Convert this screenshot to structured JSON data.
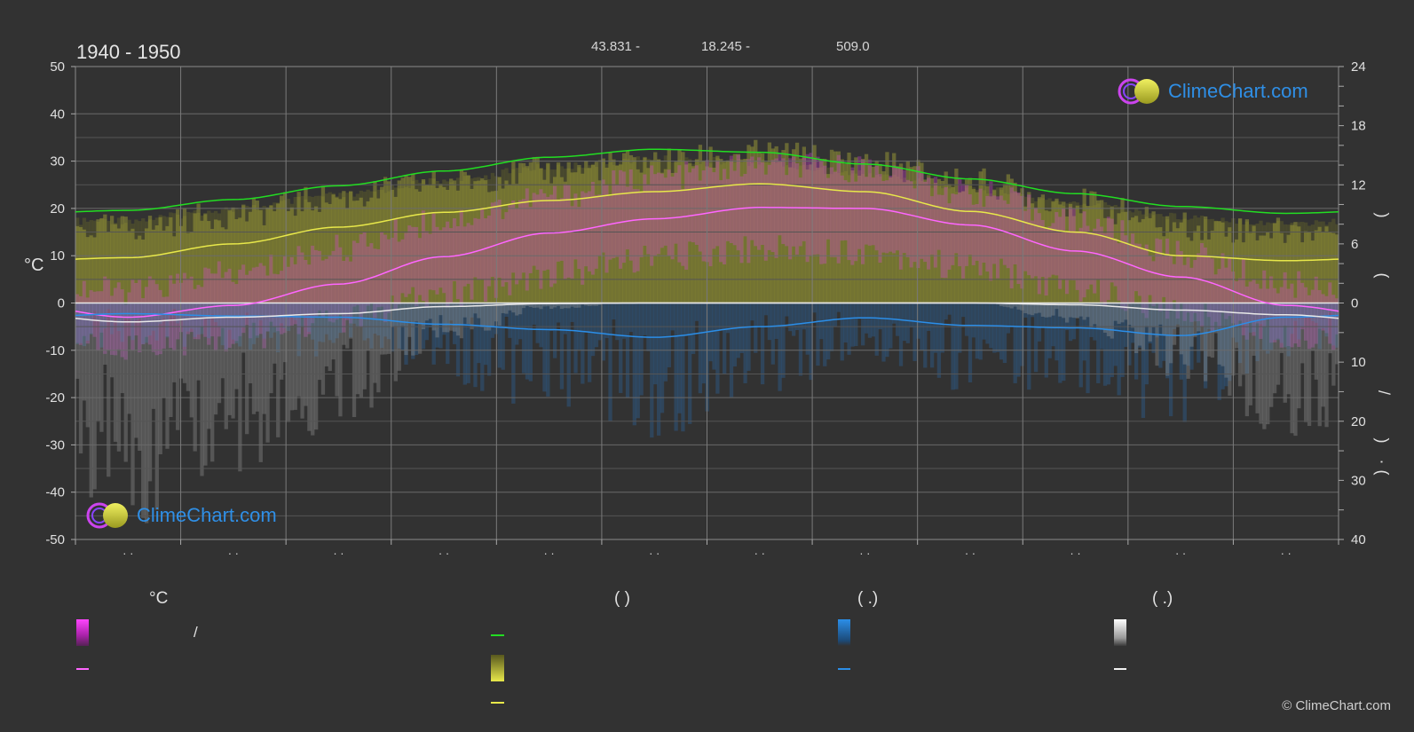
{
  "header": {
    "period": "1940 - 1950",
    "latitude": "43.831 -",
    "longitude": "18.245 -",
    "elevation": "509.0"
  },
  "logo_text": "ClimeChart.com",
  "copyright": "© ClimeChart.com",
  "left_axis_unit": "°C",
  "right_axis_marks": [
    "(",
    ")",
    "/",
    "(",
    "·",
    ")"
  ],
  "legend": {
    "temperature_head": "°C",
    "daylight_head": "(          )",
    "rain_head": "(    .)",
    "snow_head": "(    .)",
    "temp_range_sep": "/"
  },
  "colors": {
    "background": "#323232",
    "grid": "#6a6a6a",
    "daylight": "#22dd22",
    "sunshine": "#e8e84a",
    "temp_mean": "#ff66ff",
    "temp_fill": "#dd44dd",
    "rain": "#2b8ee8",
    "snow": "#e8e8e8"
  },
  "chart_data": {
    "type": "line",
    "x_ticks": [
      "· ·",
      "· ·",
      "· ·",
      "· ·",
      "· ·",
      "· ·",
      "· ·",
      "· ·",
      "· ·",
      "· ·",
      "· ·",
      "· ·"
    ],
    "left_axis": {
      "label": "°C",
      "range": [
        -50,
        50
      ],
      "ticks": [
        50,
        40,
        30,
        20,
        10,
        0,
        -10,
        -20,
        -30,
        -40,
        -50
      ]
    },
    "right_axis_top": {
      "range": [
        0,
        24
      ],
      "ticks": [
        24,
        18,
        12,
        6,
        0
      ]
    },
    "right_axis_bottom": {
      "range": [
        0,
        40
      ],
      "ticks": [
        0,
        10,
        20,
        30,
        40
      ]
    },
    "grid": true,
    "series": [
      {
        "key": "daylight",
        "axis": "right_top",
        "values": [
          9.4,
          10.5,
          11.9,
          13.4,
          14.8,
          15.6,
          15.3,
          14.1,
          12.6,
          11.1,
          9.8,
          9.1
        ]
      },
      {
        "key": "sunshine",
        "axis": "right_top",
        "values": [
          4.6,
          6.0,
          7.7,
          9.2,
          10.4,
          11.3,
          12.1,
          11.3,
          9.3,
          7.2,
          4.8,
          4.3
        ]
      },
      {
        "key": "temp_mean",
        "axis": "left",
        "values": [
          -3.0,
          -0.5,
          4.0,
          9.8,
          14.8,
          17.8,
          20.2,
          20.0,
          16.5,
          11.0,
          5.5,
          -0.5
        ]
      },
      {
        "key": "rain",
        "axis": "right_bottom",
        "values": [
          1.8,
          2.2,
          2.4,
          3.6,
          4.5,
          5.8,
          4.0,
          2.5,
          3.8,
          4.2,
          5.5,
          2.4
        ]
      },
      {
        "key": "snow",
        "axis": "right_bottom",
        "values": [
          3.2,
          2.4,
          1.8,
          0.6,
          0.1,
          0.0,
          0.0,
          0.0,
          0.0,
          0.3,
          1.2,
          2.0
        ]
      }
    ],
    "temp_band": {
      "max": [
        2.5,
        6.0,
        11.5,
        17.5,
        22.5,
        26.5,
        29.0,
        28.5,
        23.5,
        17.5,
        10.5,
        4.0
      ],
      "min": [
        -9.0,
        -7.5,
        -3.5,
        1.5,
        6.0,
        9.5,
        11.5,
        11.0,
        7.5,
        3.0,
        -2.0,
        -6.5
      ]
    }
  }
}
